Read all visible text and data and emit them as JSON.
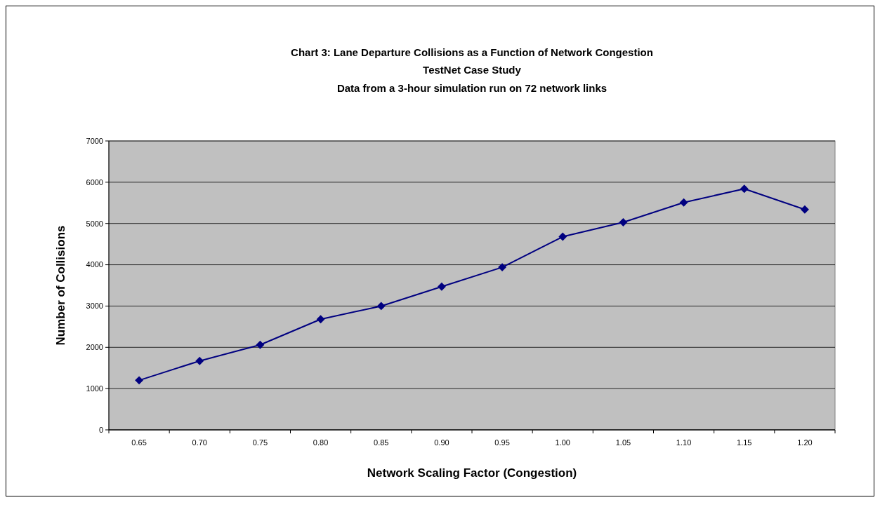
{
  "chart_data": {
    "type": "line",
    "title": "Chart 3: Lane Departure Collisions as a Function of Network Congestion",
    "subtitle": "TestNet Case Study\nData from a 3-hour simulation run on 72 network links",
    "xlabel": "Network Scaling Factor (Congestion)",
    "ylabel": "Number of Collisions",
    "categories": [
      "0.65",
      "0.70",
      "0.75",
      "0.80",
      "0.85",
      "0.90",
      "0.95",
      "1.00",
      "1.05",
      "1.10",
      "1.15",
      "1.20"
    ],
    "series": [
      {
        "color": "#000080",
        "values": [
          1200,
          1670,
          2060,
          2680,
          3000,
          3470,
          3940,
          4680,
          5030,
          5510,
          5840,
          5340
        ]
      }
    ],
    "ylim": [
      0,
      7000
    ],
    "yticks": [
      0,
      1000,
      2000,
      3000,
      4000,
      5000,
      6000,
      7000
    ],
    "grid": "y",
    "marker": "diamond",
    "line_style": "solid"
  }
}
